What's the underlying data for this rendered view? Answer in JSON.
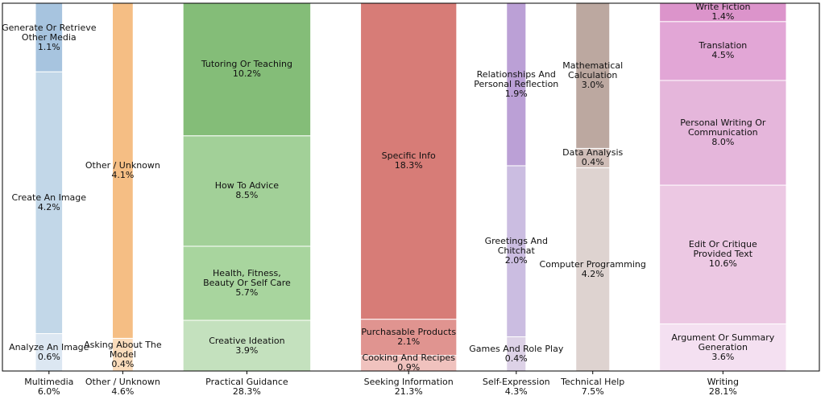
{
  "chart_data": {
    "type": "marimekko",
    "columns": [
      {
        "name": "Multimedia",
        "total": 6.0,
        "total_label": "6.0%",
        "names": [
          "Analyze An Image",
          "Create An Image",
          "Generate Or Retrieve\nOther Media"
        ],
        "values": [
          0.6,
          4.2,
          1.1
        ],
        "value_labels": [
          "0.6%",
          "4.2%",
          "1.1%"
        ],
        "colors": [
          "#dce7f2",
          "#c2d7e8",
          "#a7c4df"
        ]
      },
      {
        "name": "Other / Unknown",
        "total": 4.6,
        "total_label": "4.6%",
        "names": [
          "Asking About The\nModel",
          "Other / Unknown"
        ],
        "values": [
          0.4,
          4.1
        ],
        "value_labels": [
          "0.4%",
          "4.1%"
        ],
        "colors": [
          "#fbdcbb",
          "#f5be84"
        ]
      },
      {
        "name": "Practical Guidance",
        "total": 28.3,
        "total_label": "28.3%",
        "names": [
          "Creative Ideation",
          "Health, Fitness,\nBeauty Or Self Care",
          "How To Advice",
          "Tutoring Or Teaching"
        ],
        "values": [
          3.9,
          5.7,
          8.5,
          10.2
        ],
        "value_labels": [
          "3.9%",
          "5.7%",
          "8.5%",
          "10.2%"
        ],
        "colors": [
          "#c4e1be",
          "#a8d59e",
          "#a2d098",
          "#84bd78"
        ]
      },
      {
        "name": "Seeking Information",
        "total": 21.3,
        "total_label": "21.3%",
        "names": [
          "Cooking And Recipes",
          "Purchasable Products",
          "Specific Info"
        ],
        "values": [
          0.9,
          2.1,
          18.3
        ],
        "value_labels": [
          "0.9%",
          "2.1%",
          "18.3%"
        ],
        "colors": [
          "#f0c2be",
          "#e09490",
          "#d77c77"
        ]
      },
      {
        "name": "Self-Expression",
        "total": 4.3,
        "total_label": "4.3%",
        "names": [
          "Games And Role Play",
          "Greetings And\nChitchat",
          "Relationships And\nPersonal Reflection"
        ],
        "values": [
          0.4,
          2.0,
          1.9
        ],
        "value_labels": [
          "0.4%",
          "2.0%",
          "1.9%"
        ],
        "colors": [
          "#ddd2e7",
          "#cbbde1",
          "#bba0d6"
        ]
      },
      {
        "name": "Technical Help",
        "total": 7.5,
        "total_label": "7.5%",
        "names": [
          "Computer Programming",
          "Data Analysis",
          "Mathematical\nCalculation"
        ],
        "values": [
          4.2,
          0.4,
          3.0
        ],
        "value_labels": [
          "4.2%",
          "0.4%",
          "3.0%"
        ],
        "colors": [
          "#ded3d0",
          "#cfbdb7",
          "#bca8a0"
        ]
      },
      {
        "name": "Writing",
        "total": 28.1,
        "total_label": "28.1%",
        "names": [
          "Argument Or Summary\nGeneration",
          "Edit Or Critique\nProvided Text",
          "Personal Writing Or\nCommunication",
          "Translation",
          "Write Fiction"
        ],
        "values": [
          3.6,
          10.6,
          8.0,
          4.5,
          1.4
        ],
        "value_labels": [
          "3.6%",
          "10.6%",
          "8.0%",
          "4.5%",
          "1.4%"
        ],
        "colors": [
          "#f4e0f1",
          "#ecc8e3",
          "#e5b6db",
          "#e2a6d6",
          "#dc94cb"
        ]
      }
    ]
  }
}
